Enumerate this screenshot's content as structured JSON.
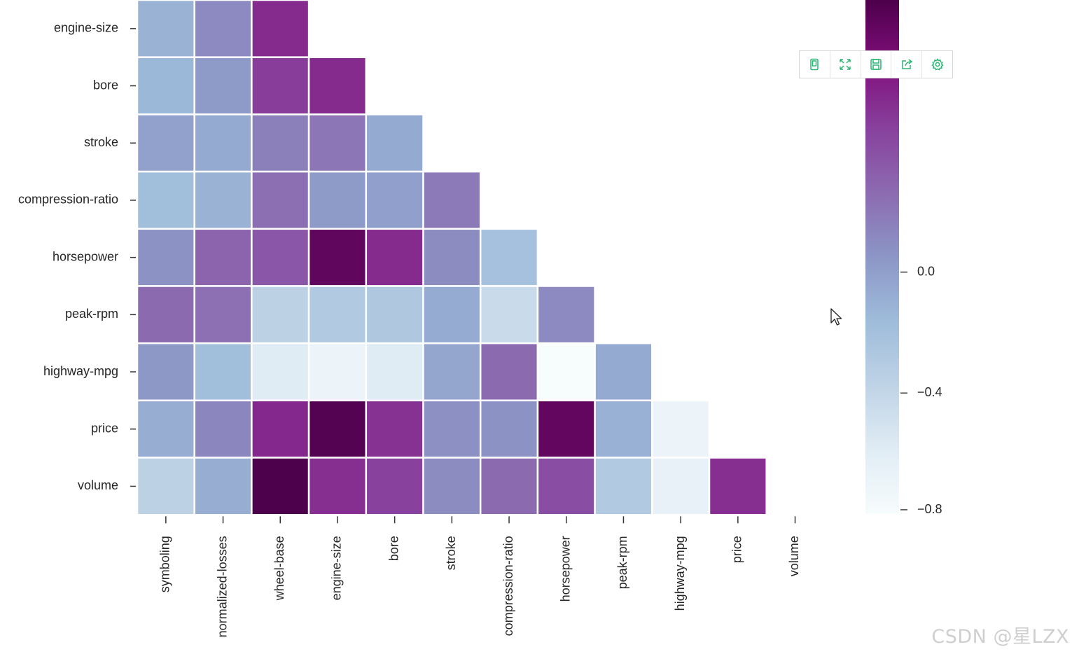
{
  "chart_data": {
    "type": "heatmap",
    "title": "",
    "row_labels": [
      "engine-size",
      "bore",
      "stroke",
      "compression-ratio",
      "horsepower",
      "peak-rpm",
      "highway-mpg",
      "price",
      "volume"
    ],
    "col_labels": [
      "symboling",
      "normalized-losses",
      "wheel-base",
      "engine-size",
      "bore",
      "stroke",
      "compression-ratio",
      "horsepower",
      "peak-rpm",
      "highway-mpg",
      "price",
      "volume"
    ],
    "values": [
      [
        -0.11,
        0.11,
        0.57,
        null,
        null,
        null,
        null,
        null,
        null,
        null,
        null,
        null
      ],
      [
        -0.14,
        0.03,
        0.49,
        0.57,
        null,
        null,
        null,
        null,
        null,
        null,
        null,
        null
      ],
      [
        -0.01,
        -0.06,
        0.16,
        0.21,
        -0.06,
        null,
        null,
        null,
        null,
        null,
        null,
        null
      ],
      [
        -0.18,
        -0.11,
        0.25,
        0.03,
        0.0,
        0.19,
        null,
        null,
        null,
        null,
        null,
        null
      ],
      [
        0.07,
        0.3,
        0.37,
        0.82,
        0.57,
        0.1,
        -0.21,
        null,
        null,
        null,
        null,
        null
      ],
      [
        0.27,
        0.24,
        -0.36,
        -0.29,
        -0.27,
        -0.07,
        -0.44,
        0.11,
        null,
        null,
        null,
        null
      ],
      [
        0.04,
        -0.18,
        -0.59,
        -0.7,
        -0.59,
        -0.04,
        0.27,
        -0.8,
        -0.06,
        null,
        null,
        null
      ],
      [
        -0.08,
        0.13,
        0.58,
        0.87,
        0.54,
        0.08,
        0.07,
        0.81,
        -0.1,
        -0.7,
        null,
        null
      ],
      [
        -0.36,
        -0.08,
        0.9,
        0.55,
        0.47,
        0.1,
        0.27,
        0.41,
        -0.29,
        -0.65,
        0.55,
        null
      ]
    ],
    "colormap": "BuPu",
    "vmin": -0.8,
    "vmax": 0.9,
    "colorbar_ticks": [
      0.0,
      -0.4,
      -0.8
    ],
    "colorbar_tick_labels": [
      "0.0",
      "−0.4",
      "−0.8"
    ]
  },
  "toolbar": {
    "buttons": [
      {
        "name": "export-icon",
        "title": "Export"
      },
      {
        "name": "fullscreen-icon",
        "title": "Fullscreen"
      },
      {
        "name": "save-icon",
        "title": "Save"
      },
      {
        "name": "share-icon",
        "title": "Share"
      },
      {
        "name": "settings-icon",
        "title": "Settings"
      }
    ],
    "accent": "#2bb673"
  },
  "watermark": "CSDN @星LZX"
}
